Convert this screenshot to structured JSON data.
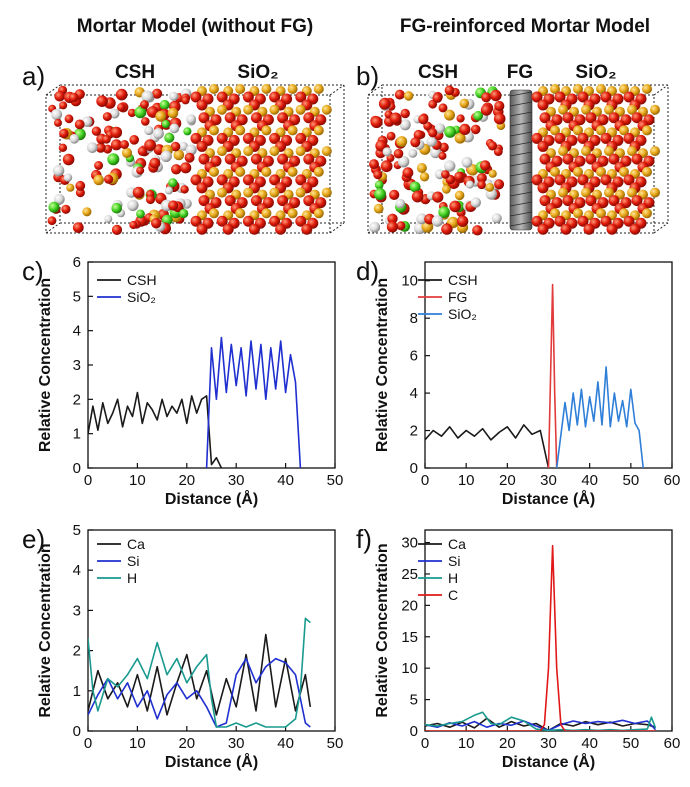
{
  "headers": {
    "left": "Mortar Model (without FG)",
    "right": "FG-reinforced Mortar Model"
  },
  "panels": {
    "a": {
      "letter": "a)",
      "labels": [
        "CSH",
        "SiO₂"
      ]
    },
    "b": {
      "letter": "b)",
      "labels": [
        "CSH",
        "FG",
        "SiO₂"
      ]
    }
  },
  "colors": {
    "black": "#1a1a1a",
    "blue": "#1f2fd0",
    "red": "#e23b3b",
    "lightblue": "#2f7fd8",
    "teal": "#1a9a8f",
    "crimson": "#e01818"
  },
  "chart_data": [
    {
      "id": "c",
      "letter": "c)",
      "type": "line",
      "xlabel": "Distance (Å)",
      "ylabel": "Relative Concentration",
      "xlim": [
        0,
        50
      ],
      "ylim": [
        0,
        6
      ],
      "xticks": [
        0,
        10,
        20,
        30,
        40,
        50
      ],
      "yticks": [
        0,
        1,
        2,
        3,
        4,
        5,
        6
      ],
      "series": [
        {
          "name": "CSH",
          "color": "#1a1a1a",
          "x": [
            0,
            1,
            2,
            3,
            4,
            5,
            6,
            7,
            8,
            9,
            10,
            11,
            12,
            13,
            14,
            15,
            16,
            17,
            18,
            19,
            20,
            21,
            22,
            23,
            24,
            25,
            26,
            27
          ],
          "y": [
            1,
            1.8,
            1.1,
            1.9,
            1.3,
            1.6,
            2.0,
            1.2,
            1.8,
            1.5,
            2.2,
            1.3,
            1.9,
            1.7,
            1.4,
            2.0,
            1.5,
            1.8,
            1.6,
            2.0,
            1.3,
            2.1,
            1.6,
            2.0,
            2.1,
            0.1,
            0.3,
            0
          ]
        },
        {
          "name": "SiO₂",
          "color": "#1f2fd0",
          "x": [
            24,
            25,
            26,
            27,
            28,
            29,
            30,
            31,
            32,
            33,
            34,
            35,
            36,
            37,
            38,
            39,
            40,
            41,
            42,
            43
          ],
          "y": [
            0,
            3.5,
            2.0,
            3.8,
            2.2,
            3.6,
            2.4,
            3.5,
            2.1,
            3.7,
            2.3,
            3.6,
            2.0,
            3.5,
            2.3,
            3.7,
            2.2,
            3.3,
            2.5,
            0
          ]
        }
      ]
    },
    {
      "id": "d",
      "letter": "d)",
      "type": "line",
      "xlabel": "Distance (Å)",
      "ylabel": "Relative Concentration",
      "xlim": [
        0,
        60
      ],
      "ylim": [
        0,
        11
      ],
      "xticks": [
        0,
        10,
        20,
        30,
        40,
        50,
        60
      ],
      "yticks": [
        0,
        2,
        4,
        6,
        8,
        10
      ],
      "series": [
        {
          "name": "CSH",
          "color": "#1a1a1a",
          "x": [
            0,
            2,
            4,
            6,
            8,
            10,
            12,
            14,
            16,
            18,
            20,
            22,
            24,
            26,
            28,
            30
          ],
          "y": [
            1.5,
            2.0,
            1.7,
            2.2,
            1.6,
            2.0,
            1.7,
            2.1,
            1.5,
            1.9,
            2.2,
            1.6,
            2.3,
            1.8,
            2.0,
            0
          ]
        },
        {
          "name": "FG",
          "color": "#e23b3b",
          "x": [
            30,
            30.5,
            31,
            31.5,
            32
          ],
          "y": [
            0,
            5,
            9.8,
            4,
            0
          ]
        },
        {
          "name": "SiO₂",
          "color": "#2f7fd8",
          "x": [
            32,
            34,
            35,
            36,
            37,
            38,
            39,
            40,
            41,
            42,
            43,
            44,
            45,
            46,
            47,
            48,
            49,
            50,
            51,
            52,
            53
          ],
          "y": [
            0,
            3.5,
            2.0,
            4.0,
            2.3,
            4.2,
            2.2,
            3.8,
            2.5,
            4.6,
            2.3,
            5.4,
            2.2,
            4.0,
            2.5,
            3.6,
            2.2,
            4.2,
            2.4,
            2.0,
            0
          ]
        }
      ]
    },
    {
      "id": "e",
      "letter": "e)",
      "type": "line",
      "xlabel": "Distance (Å)",
      "ylabel": "Relative Concentration",
      "xlim": [
        0,
        50
      ],
      "ylim": [
        0,
        5
      ],
      "xticks": [
        0,
        10,
        20,
        30,
        40,
        50
      ],
      "yticks": [
        0,
        1,
        2,
        3,
        4,
        5
      ],
      "series": [
        {
          "name": "Ca",
          "color": "#1a1a1a",
          "x": [
            0,
            2,
            4,
            6,
            8,
            10,
            12,
            14,
            16,
            18,
            20,
            22,
            24,
            26,
            28,
            30,
            32,
            34,
            36,
            38,
            40,
            42,
            44,
            45
          ],
          "y": [
            0.5,
            1.5,
            0.8,
            1.2,
            0.6,
            1.4,
            0.5,
            1.6,
            0.4,
            1.2,
            1.9,
            0.8,
            1.5,
            0.4,
            1.3,
            0.6,
            1.9,
            0.5,
            2.4,
            0.6,
            1.8,
            0.5,
            1.4,
            0.6
          ]
        },
        {
          "name": "Si",
          "color": "#1f2fd0",
          "x": [
            0,
            2,
            4,
            6,
            8,
            10,
            12,
            14,
            16,
            18,
            20,
            22,
            24,
            26,
            28,
            30,
            32,
            34,
            36,
            38,
            40,
            42,
            44,
            45
          ],
          "y": [
            0.4,
            0.9,
            1.3,
            0.8,
            1.2,
            0.6,
            1.0,
            0.3,
            0.9,
            1.2,
            0.8,
            1.0,
            0.6,
            0.1,
            0.2,
            1.4,
            1.8,
            1.2,
            1.6,
            1.8,
            1.7,
            1.4,
            0.2,
            0.1
          ]
        },
        {
          "name": "H",
          "color": "#1a9a8f",
          "x": [
            0,
            1,
            2,
            4,
            6,
            8,
            10,
            12,
            14,
            16,
            18,
            20,
            22,
            24,
            25,
            26,
            28,
            30,
            32,
            34,
            36,
            38,
            40,
            42,
            43,
            44,
            45
          ],
          "y": [
            2.3,
            1.0,
            0.5,
            1.3,
            1.1,
            1.4,
            1.8,
            1.3,
            2.2,
            1.4,
            1.8,
            1.2,
            1.6,
            1.9,
            0.8,
            0.1,
            0.1,
            0.2,
            0.1,
            0.2,
            0.1,
            0.1,
            0.1,
            0.3,
            1.0,
            2.8,
            2.7
          ]
        }
      ]
    },
    {
      "id": "f",
      "letter": "f)",
      "type": "line",
      "xlabel": "Distance (Å)",
      "ylabel": "Relative Concentration",
      "xlim": [
        0,
        60
      ],
      "ylim": [
        0,
        32
      ],
      "xticks": [
        0,
        10,
        20,
        30,
        40,
        50,
        60
      ],
      "yticks": [
        0,
        5,
        10,
        15,
        20,
        25,
        30
      ],
      "series": [
        {
          "name": "Ca",
          "color": "#1a1a1a",
          "x": [
            0,
            3,
            6,
            9,
            12,
            15,
            18,
            21,
            24,
            27,
            30,
            33,
            36,
            39,
            42,
            45,
            48,
            51,
            54,
            56
          ],
          "y": [
            0.8,
            1.2,
            0.6,
            1.4,
            0.5,
            2.0,
            0.6,
            1.5,
            0.8,
            1.2,
            0.1,
            1.2,
            0.8,
            1.5,
            1.0,
            1.4,
            0.8,
            1.2,
            1.0,
            0.6
          ]
        },
        {
          "name": "Si",
          "color": "#1f2fd0",
          "x": [
            0,
            3,
            6,
            9,
            12,
            15,
            18,
            21,
            24,
            27,
            30,
            33,
            36,
            39,
            42,
            45,
            48,
            51,
            54,
            56
          ],
          "y": [
            1.0,
            0.6,
            1.3,
            0.8,
            1.5,
            0.6,
            1.2,
            0.9,
            1.6,
            0.8,
            0.1,
            1.0,
            1.6,
            1.2,
            1.5,
            1.3,
            1.7,
            1.2,
            1.6,
            0.2
          ]
        },
        {
          "name": "H",
          "color": "#1a9a8f",
          "x": [
            0,
            3,
            6,
            9,
            12,
            14,
            16,
            18,
            21,
            24,
            27,
            30,
            33,
            36,
            39,
            42,
            45,
            48,
            51,
            54,
            55,
            56
          ],
          "y": [
            1.0,
            0.8,
            1.2,
            1.5,
            2.5,
            3.0,
            1.2,
            1.0,
            2.2,
            1.6,
            0.3,
            0.1,
            0.2,
            0.1,
            0.2,
            0.1,
            0.2,
            0.1,
            0.2,
            0.3,
            2.2,
            0.5
          ]
        },
        {
          "name": "C",
          "color": "#e01818",
          "x": [
            0,
            28,
            29,
            30,
            31,
            32,
            33,
            34,
            56
          ],
          "y": [
            0,
            0,
            1,
            10,
            29.5,
            10,
            1,
            0,
            0
          ]
        }
      ]
    }
  ]
}
